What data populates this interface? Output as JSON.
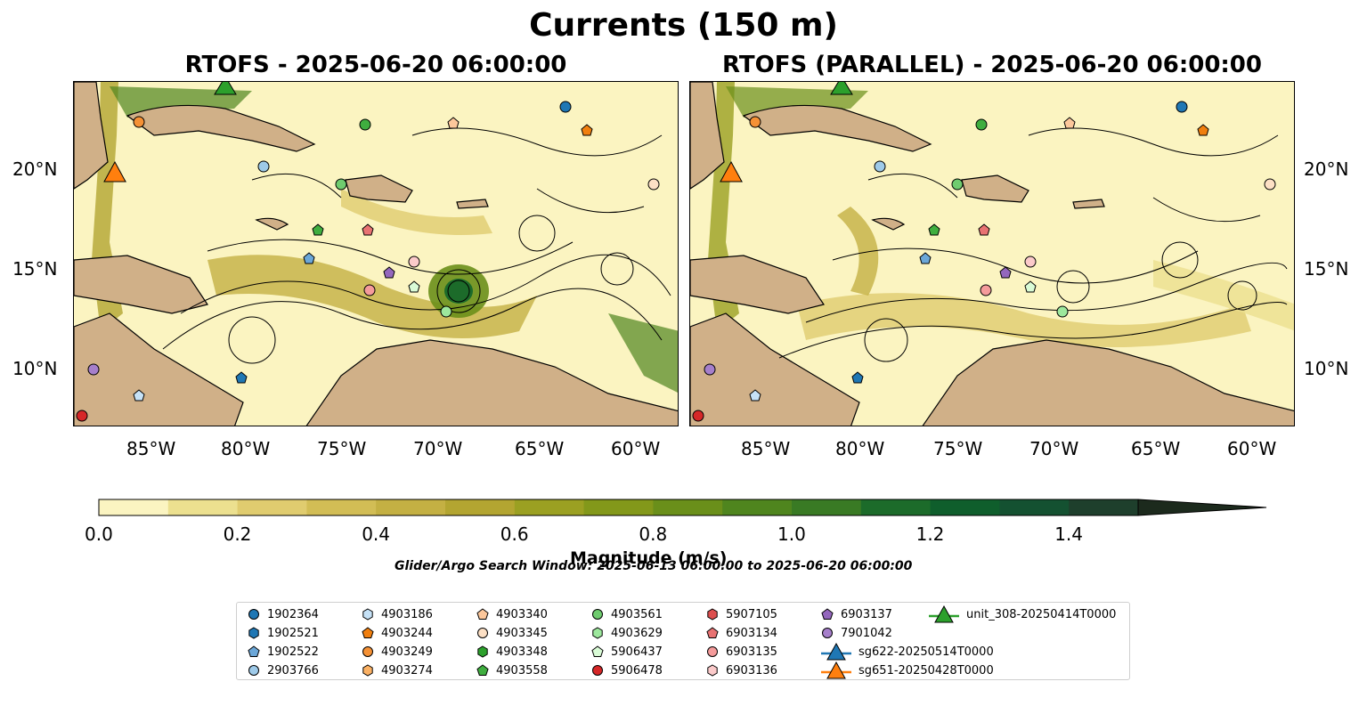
{
  "title": "Currents (150 m)",
  "panels": [
    {
      "title": "RTOFS - 2025-06-20 06:00:00"
    },
    {
      "title": "RTOFS (PARALLEL) - 2025-06-20 06:00:00"
    }
  ],
  "axes": {
    "lat_labels": [
      "20°N",
      "15°N",
      "10°N"
    ],
    "lon_labels": [
      "85°W",
      "80°W",
      "75°W",
      "70°W",
      "65°W",
      "60°W"
    ]
  },
  "colorbar": {
    "label": "Magnitude (m/s)",
    "ticks": [
      "0.0",
      "0.2",
      "0.4",
      "0.6",
      "0.8",
      "1.0",
      "1.2",
      "1.4"
    ],
    "range": [
      0,
      1.5
    ],
    "extend": "max",
    "colors": [
      "#fbf4c1",
      "#ece08f",
      "#e0cc6f",
      "#d2bd55",
      "#c4b043",
      "#b3a531",
      "#9ba022",
      "#83981a",
      "#6a8f1a",
      "#4f851e",
      "#397a24",
      "#1c6b2a",
      "#0f5e2c",
      "#145131",
      "#1e3f2c",
      "#1c2a1d"
    ]
  },
  "search_window": "Glider/Argo Search Window: 2025-06-13 06:00:00 to 2025-06-20 06:00:00",
  "colors": {
    "land": "#d0b088",
    "shallow": "#97b8e2",
    "coast": "#000000"
  },
  "legend": [
    {
      "label": "1902364",
      "marker": "circle",
      "color": "#1f77b4"
    },
    {
      "label": "1902521",
      "marker": "hexagon",
      "color": "#1f77b4"
    },
    {
      "label": "1902522",
      "marker": "pentagon",
      "color": "#6ba7d8"
    },
    {
      "label": "2903766",
      "marker": "circle",
      "color": "#9ecae9"
    },
    {
      "label": "4903186",
      "marker": "hexagon",
      "color": "#c6e2f7"
    },
    {
      "label": "4903244",
      "marker": "pentagon",
      "color": "#f07f0f"
    },
    {
      "label": "4903249",
      "marker": "circle",
      "color": "#f59135"
    },
    {
      "label": "4903274",
      "marker": "hexagon",
      "color": "#fbb164"
    },
    {
      "label": "4903340",
      "marker": "pentagon",
      "color": "#fcc79b"
    },
    {
      "label": "4903345",
      "marker": "circle",
      "color": "#fde0c5"
    },
    {
      "label": "4903348",
      "marker": "hexagon",
      "color": "#2ca02c"
    },
    {
      "label": "4903558",
      "marker": "pentagon",
      "color": "#3fae3f"
    },
    {
      "label": "4903561",
      "marker": "circle",
      "color": "#6fcc6f"
    },
    {
      "label": "4903629",
      "marker": "hexagon",
      "color": "#9de89d"
    },
    {
      "label": "5906437",
      "marker": "pentagon",
      "color": "#d9fbd6"
    },
    {
      "label": "5906478",
      "marker": "circle",
      "color": "#d62728"
    },
    {
      "label": "5907105",
      "marker": "hexagon",
      "color": "#dd4f4f"
    },
    {
      "label": "6903134",
      "marker": "pentagon",
      "color": "#e87272"
    },
    {
      "label": "6903135",
      "marker": "circle",
      "color": "#f59b9b"
    },
    {
      "label": "6903136",
      "marker": "hexagon",
      "color": "#fbcaca"
    },
    {
      "label": "6903137",
      "marker": "pentagon",
      "color": "#9467bd"
    },
    {
      "label": "7901042",
      "marker": "circle",
      "color": "#a67fcb"
    },
    {
      "label": "sg622-20250514T0000",
      "marker": "triangle",
      "color": "#1f77b4"
    },
    {
      "label": "sg651-20250428T0000",
      "marker": "triangle",
      "color": "#ff7f0e"
    },
    {
      "label": "unit_308-20250414T0000",
      "marker": "triangle",
      "color": "#2ca02c"
    }
  ]
}
